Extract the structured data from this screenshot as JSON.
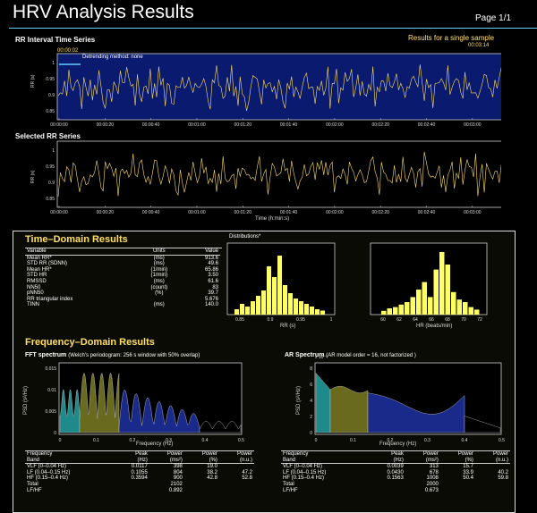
{
  "header": {
    "title": "HRV Analysis Results",
    "page": "Page 1/1",
    "subtitle": "Results for a single sample"
  },
  "rr_series": {
    "title": "RR Interval Time Series",
    "sel_start": "00:00:02",
    "sel_end": "00:03:14",
    "detrend_label": "Detrending method: none",
    "ylabel": "RR (s)",
    "yticks": [
      "1",
      "0.95",
      "0.9",
      "0.85"
    ],
    "xticks": [
      "00:00:00",
      "00:00:20",
      "00:00:40",
      "00:01:00",
      "00:01:20",
      "00:01:40",
      "00:02:00",
      "00:02:20",
      "00:02:40",
      "00:03:00"
    ]
  },
  "selected_series": {
    "title": "Selected RR Series",
    "ylabel": "RR (s)",
    "xlabel": "Time (h:min:s)",
    "yticks": [
      "1",
      "0.95",
      "0.9",
      "0.85"
    ],
    "xticks": [
      "00:00:00",
      "00:00:20",
      "00:00:40",
      "00:01:00",
      "00:01:20",
      "00:01:40",
      "00:02:00",
      "00:02:20",
      "00:02:40",
      "00:03:00"
    ]
  },
  "time_domain": {
    "title": "Time–Domain Results",
    "columns": [
      "Variable",
      "Units",
      "Value"
    ],
    "rows": [
      [
        "Mean RR*",
        "(ms)",
        "913.6"
      ],
      [
        "STD RR (SDNN)",
        "(ms)",
        "49.6"
      ],
      [
        "Mean HR*",
        "(1/min)",
        "65.86"
      ],
      [
        "STD HR",
        "(1/min)",
        "3.50"
      ],
      [
        "RMSSD",
        "(ms)",
        "61.6"
      ],
      [
        "NN50",
        "(count)",
        "83"
      ],
      [
        "pNN50",
        "(%)",
        "39.7"
      ],
      [
        "RR triangular index",
        "",
        "5.676"
      ],
      [
        "TINN",
        "(ms)",
        "140.0"
      ]
    ]
  },
  "distributions": {
    "title": "Distributions*",
    "rr_xlabel": "RR (s)",
    "hr_xlabel": "HR (beats/min)",
    "rr_ticks": [
      "0.85",
      "0.9",
      "0.95",
      "1"
    ],
    "hr_ticks": [
      "60",
      "62",
      "64",
      "66",
      "68",
      "70",
      "72"
    ]
  },
  "frequency_domain": {
    "title": "Frequency–Domain Results",
    "fft_title": "FFT spectrum",
    "fft_note": "(Welch's periodogram: 256 s window with 50% overlap)",
    "ar_title": "AR Spectrum",
    "ar_note": "(AR model order = 16, not factorized )",
    "ylabel": "PSD (s²/Hz)",
    "xlabel": "Frequency (Hz)",
    "xticks": [
      "0",
      "0.1",
      "0.2",
      "0.3",
      "0.4",
      "0.5"
    ],
    "fft_yticks": [
      "0.015",
      "0.01",
      "0.005",
      "0"
    ],
    "ar_yticks": [
      "8",
      "6",
      "4",
      "2",
      "0"
    ],
    "ar_exp": "x 10⁻³",
    "fft_table": {
      "headers": [
        "Frequency\nBand",
        "Peak\n(Hz)",
        "Power\n(ms²)",
        "Power\n(%)",
        "Power\n(n.u.)"
      ],
      "rows": [
        [
          "VLF (0–0.04 Hz)",
          "0.0117",
          "398",
          "19.0",
          ""
        ],
        [
          "LF (0.04–0.15 Hz)",
          "0.1055",
          "804",
          "38.2",
          "47.2"
        ],
        [
          "HF (0.15–0.4 Hz)",
          "0.3594",
          "900",
          "42.8",
          "52.8"
        ],
        [
          "Total",
          "",
          "2102",
          "",
          ""
        ],
        [
          "LF/HF",
          "",
          "0.892",
          "",
          ""
        ]
      ]
    },
    "ar_table": {
      "headers": [
        "Frequency\nBand",
        "Peak\n(Hz)",
        "Power\n(ms²)",
        "Power\n(%)",
        "Power\n(n.u.)"
      ],
      "rows": [
        [
          "VLF (0–0.04 Hz)",
          "0.0039",
          "313",
          "15.7",
          ""
        ],
        [
          "LF (0.04–0.15 Hz)",
          "0.0430",
          "678",
          "33.9",
          "40.2"
        ],
        [
          "HF (0.15–0.4 Hz)",
          "0.1563",
          "1008",
          "50.4",
          "59.8"
        ],
        [
          "Total",
          "",
          "2000",
          "",
          ""
        ],
        [
          "LF/HF",
          "",
          "0.673",
          "",
          ""
        ]
      ]
    }
  },
  "colors": {
    "series": "#ffe066",
    "plot_bg": "#0a1a6e",
    "vlf": "#1f8a8a",
    "lf": "#6a6a1e",
    "hf": "#1a2a8a",
    "hist": "#ffff66"
  }
}
